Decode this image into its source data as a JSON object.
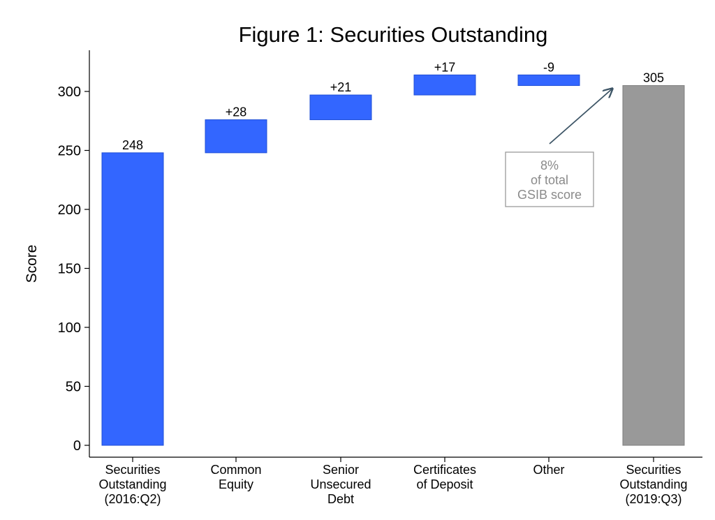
{
  "chart_data": {
    "type": "bar",
    "subtype": "waterfall",
    "title": "Figure 1: Securities Outstanding",
    "xlabel": "",
    "ylabel": "Score",
    "ylim": [
      0,
      330
    ],
    "yticks": [
      0,
      50,
      100,
      150,
      200,
      250,
      300
    ],
    "ytick_labels": [
      "0",
      "50",
      "100",
      "150",
      "200",
      "250",
      "300"
    ],
    "grid": false,
    "categories": [
      [
        "Securities",
        "Outstanding",
        "(2016:Q2)"
      ],
      [
        "Common",
        "Equity"
      ],
      [
        "Senior",
        "Unsecured",
        "Debt"
      ],
      [
        "Certificates",
        "of Deposit"
      ],
      [
        "Other"
      ],
      [
        "Securities",
        "Outstanding",
        "(2019:Q3)"
      ]
    ],
    "bars": [
      {
        "kind": "total",
        "start": 0,
        "end": 248,
        "label": "248",
        "color": "#3366ff"
      },
      {
        "kind": "change",
        "start": 248,
        "end": 276,
        "label": "+28",
        "color": "#3366ff"
      },
      {
        "kind": "change",
        "start": 276,
        "end": 297,
        "label": "+21",
        "color": "#3366ff"
      },
      {
        "kind": "change",
        "start": 297,
        "end": 314,
        "label": "+17",
        "color": "#3366ff"
      },
      {
        "kind": "change",
        "start": 314,
        "end": 305,
        "label": "-9",
        "color": "#3366ff"
      },
      {
        "kind": "total",
        "start": 0,
        "end": 305,
        "label": "305",
        "color": "#999999"
      }
    ],
    "annotation": {
      "lines": [
        "8%",
        "of total",
        "GSIB score"
      ],
      "points_to_category": 5
    }
  },
  "colors": {
    "blue": "#3366ff",
    "blue_edge": "#1f4fd6",
    "gray": "#999999",
    "gray_edge": "#7f7f7f",
    "arrow": "#3d5566",
    "annotation_border": "#9a9a9a"
  }
}
